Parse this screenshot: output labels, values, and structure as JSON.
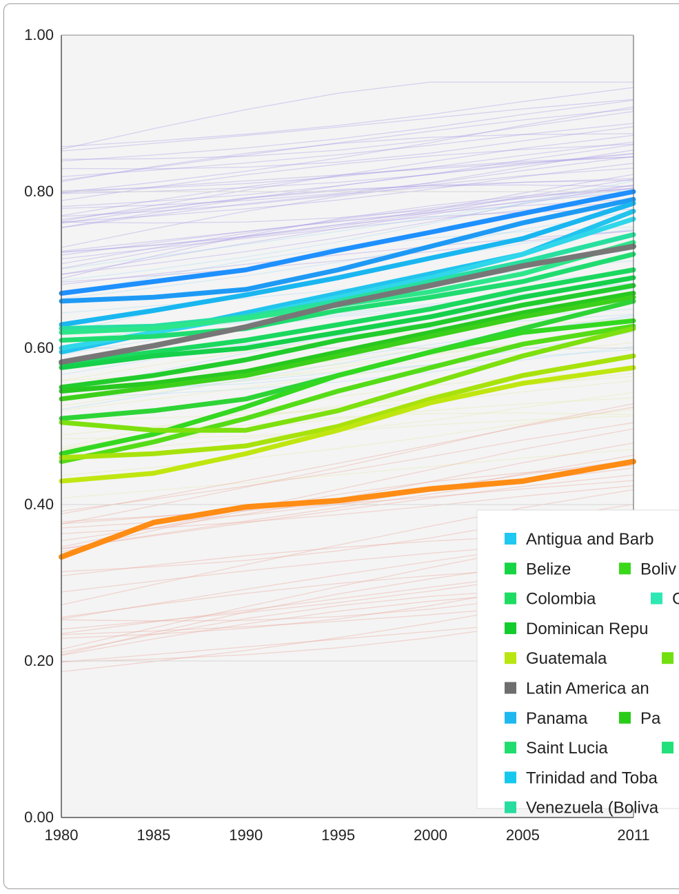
{
  "chart_data": {
    "type": "line",
    "title": "",
    "xlabel": "",
    "ylabel": "",
    "xlim": [
      1980,
      2011
    ],
    "ylim": [
      0,
      1
    ],
    "grid": true,
    "legend_position": "bottom-right",
    "x_ticks": [
      {
        "value": 1980,
        "label": "1980"
      },
      {
        "value": 1985,
        "label": "1985"
      },
      {
        "value": 1990,
        "label": "1990"
      },
      {
        "value": 1995,
        "label": "1995"
      },
      {
        "value": 2000,
        "label": "2000"
      },
      {
        "value": 2005,
        "label": "2005"
      },
      {
        "value": 2011,
        "label": "2011"
      }
    ],
    "y_ticks": [
      {
        "value": 0,
        "label": "0.00"
      },
      {
        "value": 0.2,
        "label": "0.20"
      },
      {
        "value": 0.4,
        "label": "0.40"
      },
      {
        "value": 0.6,
        "label": "0.60"
      },
      {
        "value": 0.8,
        "label": "0.80"
      },
      {
        "value": 1.0,
        "label": "1.00"
      }
    ],
    "x": [
      1980,
      1985,
      1990,
      1995,
      2000,
      2005,
      2011
    ],
    "series": [
      {
        "color": "#1e90ff",
        "values": [
          0.67,
          0.685,
          0.7,
          0.725,
          0.748,
          0.772,
          0.8
        ]
      },
      {
        "color": "#1e9af5",
        "values": [
          0.66,
          0.665,
          0.675,
          0.7,
          0.73,
          0.76,
          0.79
        ]
      },
      {
        "color": "#19b6f0",
        "values": [
          0.63,
          0.648,
          0.668,
          0.69,
          0.715,
          0.74,
          0.785
        ]
      },
      {
        "color": "#22c4ee",
        "values": [
          0.595,
          0.62,
          0.645,
          0.67,
          0.695,
          0.72,
          0.775
        ]
      },
      {
        "color": "#30d6ea",
        "values": [
          0.6,
          0.62,
          0.64,
          0.665,
          0.69,
          0.72,
          0.765
        ]
      },
      {
        "color": "#28dfa0",
        "values": [
          0.625,
          0.628,
          0.64,
          0.66,
          0.685,
          0.71,
          0.745
        ]
      },
      {
        "color": "#2ee68a",
        "values": [
          0.62,
          0.625,
          0.638,
          0.655,
          0.672,
          0.695,
          0.735
        ]
      },
      {
        "color": "#20dc70",
        "values": [
          0.61,
          0.615,
          0.625,
          0.648,
          0.665,
          0.685,
          0.72
        ]
      },
      {
        "color": "#1bd85e",
        "values": [
          0.58,
          0.595,
          0.61,
          0.63,
          0.65,
          0.675,
          0.7
        ]
      },
      {
        "color": "#15d04a",
        "values": [
          0.575,
          0.59,
          0.6,
          0.62,
          0.64,
          0.665,
          0.69
        ]
      },
      {
        "color": "#22cc2c",
        "values": [
          0.55,
          0.565,
          0.585,
          0.61,
          0.63,
          0.655,
          0.68
        ]
      },
      {
        "color": "#28c81f",
        "values": [
          0.545,
          0.555,
          0.57,
          0.595,
          0.62,
          0.645,
          0.67
        ]
      },
      {
        "color": "#3dd01a",
        "values": [
          0.535,
          0.55,
          0.565,
          0.59,
          0.615,
          0.64,
          0.665
        ]
      },
      {
        "color": "#2ed436",
        "values": [
          0.51,
          0.52,
          0.535,
          0.565,
          0.595,
          0.625,
          0.66
        ]
      },
      {
        "color": "#33d820",
        "values": [
          0.465,
          0.49,
          0.525,
          0.565,
          0.595,
          0.62,
          0.635
        ]
      },
      {
        "color": "#55dc18",
        "values": [
          0.455,
          0.48,
          0.51,
          0.545,
          0.575,
          0.605,
          0.628
        ]
      },
      {
        "color": "#7ee00e",
        "values": [
          0.505,
          0.495,
          0.495,
          0.52,
          0.555,
          0.59,
          0.625
        ]
      },
      {
        "color": "#a8e20c",
        "values": [
          0.46,
          0.465,
          0.475,
          0.5,
          0.535,
          0.565,
          0.59
        ]
      },
      {
        "color": "#c0e610",
        "values": [
          0.43,
          0.44,
          0.465,
          0.495,
          0.53,
          0.555,
          0.575
        ]
      },
      {
        "color": "#777777",
        "values": [
          0.582,
          0.603,
          0.627,
          0.656,
          0.68,
          0.705,
          0.73
        ]
      },
      {
        "color": "#ff8c14",
        "values": [
          0.333,
          0.377,
          0.397,
          0.405,
          0.42,
          0.43,
          0.455
        ]
      }
    ],
    "legend": [
      {
        "label": "Antigua and Barb",
        "color": "#1ec8f0"
      },
      {
        "label": "Belize",
        "color": "#17d444"
      },
      {
        "label": "Boliv",
        "color": "#3ad81a"
      },
      {
        "label": "Colombia",
        "color": "#1edc62"
      },
      {
        "label": "C",
        "color": "#2ee8b4"
      },
      {
        "label": "Dominican Repu",
        "color": "#11cc2c"
      },
      {
        "label": "Guatemala",
        "color": "#b8e60e"
      },
      {
        "label": "",
        "color": "#72e010"
      },
      {
        "label": "Latin America an",
        "color": "#6e6e6e"
      },
      {
        "label": "Panama",
        "color": "#1eb8f0"
      },
      {
        "label": "Pa",
        "color": "#28cc18"
      },
      {
        "label": "Saint Lucia",
        "color": "#22dc6e"
      },
      {
        "label": "",
        "color": "#22e07a"
      },
      {
        "label": "Trinidad and Toba",
        "color": "#16c8ee"
      },
      {
        "label": "Venezuela (Boliva",
        "color": "#28dca0"
      }
    ]
  }
}
